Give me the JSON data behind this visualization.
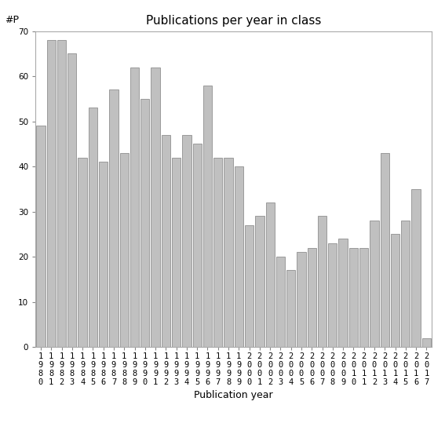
{
  "title": "Publications per year in class",
  "xlabel": "Publication year",
  "ylabel": "#P",
  "years": [
    1980,
    1981,
    1982,
    1983,
    1984,
    1985,
    1986,
    1987,
    1988,
    1989,
    1990,
    1991,
    1992,
    1993,
    1994,
    1995,
    1996,
    1997,
    1998,
    1999,
    2000,
    2001,
    2002,
    2003,
    2004,
    2005,
    2006,
    2007,
    2008,
    2009,
    2010,
    2011,
    2012,
    2013,
    2014,
    2015,
    2016,
    2017
  ],
  "values": [
    49,
    68,
    68,
    65,
    42,
    53,
    41,
    57,
    43,
    62,
    55,
    62,
    47,
    42,
    47,
    45,
    58,
    42,
    42,
    40,
    27,
    29,
    32,
    20,
    17,
    21,
    22,
    29,
    23,
    24,
    22,
    22,
    28,
    43,
    25,
    28,
    35,
    2
  ],
  "bar_color": "#c0c0c0",
  "bar_edgecolor": "#808080",
  "ylim": [
    0,
    70
  ],
  "yticks": [
    0,
    10,
    20,
    30,
    40,
    50,
    60,
    70
  ],
  "bg_color": "#ffffff",
  "title_fontsize": 11,
  "label_fontsize": 9,
  "tick_fontsize": 7.5
}
